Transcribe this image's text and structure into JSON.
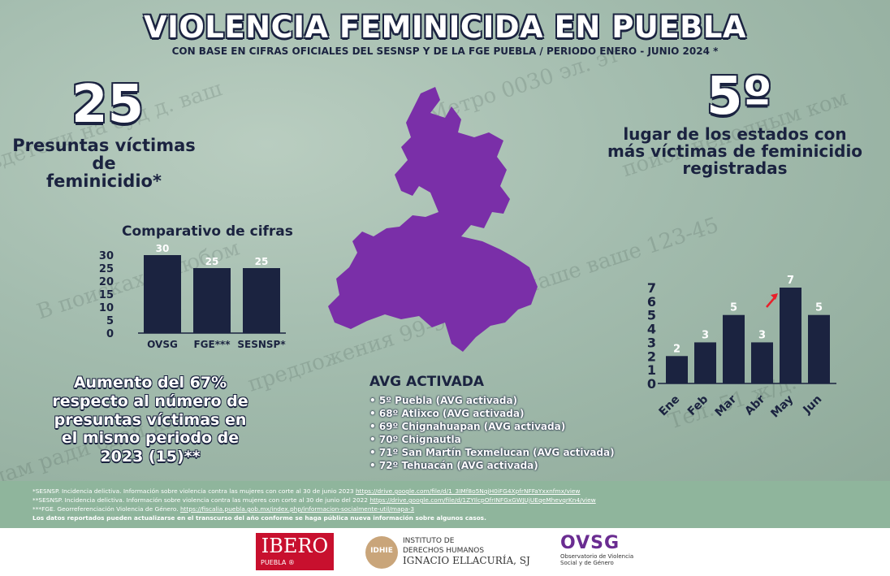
{
  "header": {
    "title": "VIOLENCIA FEMINICIDA EN PUEBLA",
    "subtitle": "CON BASE EN CIFRAS OFICIALES DEL SESNSP Y DE LA FGE PUEBLA / PERIODO ENERO - JUNIO 2024 *"
  },
  "stat_left": {
    "number": "25",
    "caption_l1": "Presuntas víctimas de",
    "caption_l2": "feminicidio*"
  },
  "stat_right": {
    "number": "5º",
    "caption_l1": "lugar de los estados con",
    "caption_l2": "más víctimas de feminicidio",
    "caption_l3": "registradas"
  },
  "increase": {
    "l1": "Aumento del 67%",
    "l2": "respecto al número de",
    "l3": "presuntas víctimas en",
    "l4": "el mismo periodo de",
    "l5": "2023 (15)**"
  },
  "avg": {
    "title": "AVG ACTIVADA",
    "items": [
      "• 5º Puebla (AVG activada)",
      "• 68º Atlixco (AVG activada)",
      "• 69º Chignahuapan (AVG activada)",
      "• 70º Chignautla",
      "• 71º San Martín Texmelucan (AVG activada)",
      "• 72º Tehuacán (AVG activada)"
    ]
  },
  "footnotes": [
    {
      "text": "*SESNSP. Incidencia delictiva. Información sobre violencia contra las mujeres con corte al 30 de junio 2023 ",
      "link": "https://drive.google.com/file/d/1_3IMf8o5NqjH0iFG4XpfrNFFaYxxnfmx/view"
    },
    {
      "text": "**SESNSP. Incidencia delictiva. Información sobre violencia contra las mujeres con corte al 30 de junio del 2022 ",
      "link": "https://drive.google.com/file/d/1ZYIlcpOfrINFGxGWJUjUEqeMhevqrKn4/view"
    },
    {
      "text": "***FGE. Georreferenciación Violencia de Género. ",
      "link": "https://fiscalia.puebla.gob.mx/index.php/informacion-socialmente-util/mapa-3"
    },
    {
      "text": "Los datos reportados pueden actualizarse en el transcurso del año conforme se haga pública nueva información sobre algunos casos.",
      "link": ""
    }
  ],
  "logos": {
    "ibero_main": "IBERO",
    "ibero_sub": "PUEBLA ®",
    "idhie_mark": "IDHIE",
    "idhie_l1": "INSTITUTO DE",
    "idhie_l2": "DERECHOS HUMANOS",
    "idhie_l3": "IGNACIO ELLACURÍA, SJ",
    "ovsg_main": "OVSG",
    "ovsg_l1": "Observatorio de Violencia",
    "ovsg_l2": "Social y de Género"
  },
  "colors": {
    "navy": "#1b2340",
    "map": "#7a2fa8",
    "ibero_red": "#c8102e",
    "ovsg_purple": "#6a2c91",
    "ovsg_red": "#e4003a",
    "arrow": "#e8202a"
  },
  "chart_data": [
    {
      "type": "bar",
      "title": "Comparativo de cifras",
      "categories": [
        "OVSG",
        "FGE***",
        "SESNSP*"
      ],
      "values": [
        30,
        25,
        25
      ],
      "data_labels": [
        "30",
        "25",
        "25"
      ],
      "ylim": [
        0,
        30
      ],
      "yticks": [
        "0",
        "5",
        "10",
        "15",
        "20",
        "25",
        "30"
      ],
      "grid": false
    },
    {
      "type": "bar",
      "title": "",
      "categories": [
        "Ene",
        "Feb",
        "Mar",
        "Abr",
        "May",
        "Jun"
      ],
      "values": [
        2,
        3,
        5,
        3,
        7,
        5
      ],
      "data_labels": [
        "2",
        "3",
        "5",
        "3",
        "7",
        "5"
      ],
      "ylim": [
        0,
        7
      ],
      "yticks": [
        "0",
        "1",
        "2",
        "3",
        "4",
        "5",
        "6",
        "7"
      ],
      "grid": false,
      "highlight": "May"
    }
  ]
}
